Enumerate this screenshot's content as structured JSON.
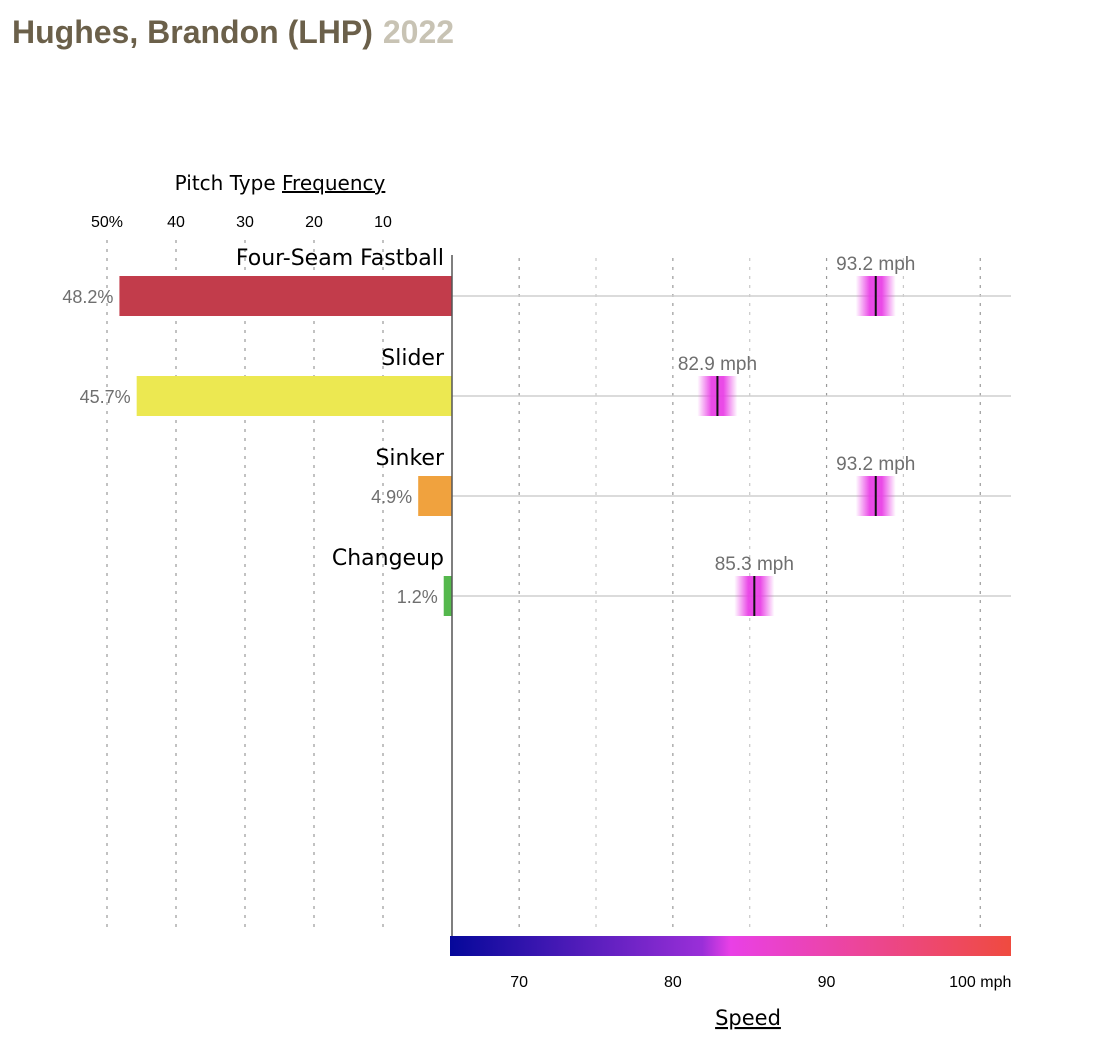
{
  "header": {
    "player": "Hughes, Brandon (LHP)",
    "season": "2022"
  },
  "chart_data": {
    "type": "bar",
    "frequency_axis": {
      "label_prefix": "Pitch Type ",
      "label_link": "Frequency",
      "ticks": [
        "50%",
        "40",
        "30",
        "20",
        "10"
      ],
      "tick_values": [
        50,
        40,
        30,
        20,
        10
      ]
    },
    "speed_axis": {
      "label": "Speed",
      "ticks": [
        "70",
        "80",
        "90",
        "100 mph"
      ],
      "tick_values": [
        70,
        80,
        90,
        100
      ],
      "range": [
        65.5,
        102
      ],
      "colorscale": [
        "#05089a",
        "#8b28d6",
        "#e940e6",
        "#ef4b3f"
      ]
    },
    "categories": [
      "Four-Seam Fastball",
      "Slider",
      "Sinker",
      "Changeup"
    ],
    "series": [
      {
        "name": "Frequency",
        "values": [
          48.2,
          45.7,
          4.9,
          1.2
        ],
        "labels": [
          "48.2%",
          "45.7%",
          "4.9%",
          "1.2%"
        ],
        "colors": [
          "#c23c4b",
          "#ece851",
          "#f0a23e",
          "#55b84d"
        ]
      },
      {
        "name": "Speed",
        "values": [
          93.2,
          82.9,
          93.2,
          85.3
        ],
        "labels": [
          "93.2 mph",
          "82.9 mph",
          "93.2 mph",
          "85.3 mph"
        ]
      }
    ]
  }
}
